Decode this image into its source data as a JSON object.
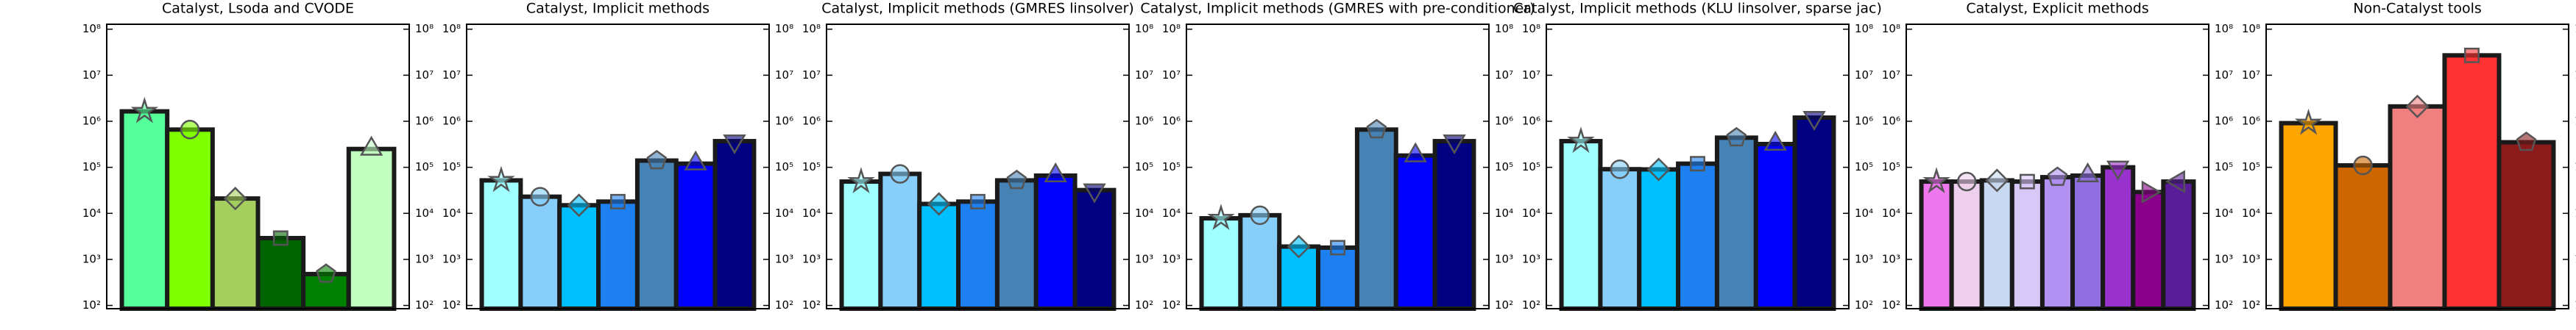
{
  "chart_data": [
    {
      "type": "bar",
      "title": "Catalyst, Lsoda and CVODE",
      "log_scale": true,
      "values": [
        1640000,
        660000,
        21000,
        2900,
        480,
        250000
      ],
      "colors": [
        "#55ff99",
        "#7fff00",
        "#a4cf5e",
        "#006400",
        "#008000",
        "#c0ffc0"
      ],
      "ylim": [
        85,
        128000000
      ],
      "yticks": [
        {
          "value": 100,
          "label": "10²"
        },
        {
          "value": 1000,
          "label": "10³"
        },
        {
          "value": 10000,
          "label": "10⁴"
        },
        {
          "value": 100000,
          "label": "10⁵"
        },
        {
          "value": 1000000,
          "label": "10⁶"
        },
        {
          "value": 10000000,
          "label": "10⁷"
        },
        {
          "value": 100000000,
          "label": "10⁸"
        }
      ]
    },
    {
      "type": "bar",
      "title": "Catalyst, Implicit methods",
      "log_scale": true,
      "values": [
        52000,
        23000,
        15000,
        18000,
        140000,
        120000,
        370000
      ],
      "colors": [
        "#a0ffff",
        "#87cefa",
        "#00bfff",
        "#1e80f0",
        "#4682b4",
        "#0000ff",
        "#000080"
      ],
      "ylim": [
        85,
        128000000
      ],
      "yticks": [
        {
          "value": 100,
          "label": "10²"
        },
        {
          "value": 1000,
          "label": "10³"
        },
        {
          "value": 10000,
          "label": "10⁴"
        },
        {
          "value": 100000,
          "label": "10⁵"
        },
        {
          "value": 1000000,
          "label": "10⁶"
        },
        {
          "value": 10000000,
          "label": "10⁷"
        },
        {
          "value": 100000000,
          "label": "10⁸"
        }
      ]
    },
    {
      "type": "bar",
      "title": "Catalyst, Implicit methods (GMRES linsolver)",
      "log_scale": true,
      "values": [
        49000,
        72000,
        16000,
        18000,
        52000,
        66000,
        32000
      ],
      "colors": [
        "#a0ffff",
        "#87cefa",
        "#00bfff",
        "#1e80f0",
        "#4682b4",
        "#0000ff",
        "#000080"
      ],
      "ylim": [
        85,
        128000000
      ],
      "yticks": [
        {
          "value": 100,
          "label": "10²"
        },
        {
          "value": 1000,
          "label": "10³"
        },
        {
          "value": 10000,
          "label": "10⁴"
        },
        {
          "value": 100000,
          "label": "10⁵"
        },
        {
          "value": 1000000,
          "label": "10⁶"
        },
        {
          "value": 10000000,
          "label": "10⁷"
        },
        {
          "value": 100000000,
          "label": "10⁸"
        }
      ]
    },
    {
      "type": "bar",
      "title": "Catalyst, Implicit methods (GMRES with pre-conditioner)",
      "log_scale": true,
      "values": [
        7800,
        9100,
        1900,
        1800,
        660000,
        180000,
        370000
      ],
      "colors": [
        "#a0ffff",
        "#87cefa",
        "#00bfff",
        "#1e80f0",
        "#4682b4",
        "#0000ff",
        "#000080"
      ],
      "ylim": [
        85,
        128000000
      ],
      "yticks": [
        {
          "value": 100,
          "label": "10²"
        },
        {
          "value": 1000,
          "label": "10³"
        },
        {
          "value": 10000,
          "label": "10⁴"
        },
        {
          "value": 100000,
          "label": "10⁵"
        },
        {
          "value": 1000000,
          "label": "10⁶"
        },
        {
          "value": 10000000,
          "label": "10⁷"
        },
        {
          "value": 100000000,
          "label": "10⁸"
        }
      ]
    },
    {
      "type": "bar",
      "title": "Catalyst, Implicit methods (KLU linsolver, sparse jac)",
      "log_scale": true,
      "values": [
        370000,
        91000,
        90000,
        120000,
        440000,
        320000,
        1200000
      ],
      "colors": [
        "#a0ffff",
        "#87cefa",
        "#00bfff",
        "#1e80f0",
        "#4682b4",
        "#0000ff",
        "#000080"
      ],
      "ylim": [
        85,
        128000000
      ],
      "yticks": [
        {
          "value": 100,
          "label": "10²"
        },
        {
          "value": 1000,
          "label": "10³"
        },
        {
          "value": 10000,
          "label": "10⁴"
        },
        {
          "value": 100000,
          "label": "10⁵"
        },
        {
          "value": 1000000,
          "label": "10⁶"
        },
        {
          "value": 10000000,
          "label": "10⁷"
        },
        {
          "value": 100000000,
          "label": "10⁸"
        }
      ]
    },
    {
      "type": "bar",
      "title": "Catalyst, Explicit methods",
      "log_scale": true,
      "values": [
        49000,
        49000,
        52000,
        49000,
        61000,
        66000,
        100000,
        29000,
        49000
      ],
      "colors": [
        "#ee77ee",
        "#eed0ee",
        "#c8d8f0",
        "#d8c8f8",
        "#b090f0",
        "#9070e0",
        "#9932cc",
        "#8b008b",
        "#5a1d99"
      ],
      "ylim": [
        85,
        128000000
      ],
      "yticks": [
        {
          "value": 100,
          "label": "10²"
        },
        {
          "value": 1000,
          "label": "10³"
        },
        {
          "value": 10000,
          "label": "10⁴"
        },
        {
          "value": 100000,
          "label": "10⁵"
        },
        {
          "value": 1000000,
          "label": "10⁶"
        },
        {
          "value": 10000000,
          "label": "10⁷"
        },
        {
          "value": 100000000,
          "label": "10⁸"
        }
      ]
    },
    {
      "type": "bar",
      "title": "Non-Catalyst tools",
      "log_scale": true,
      "values": [
        910000,
        110000,
        2100000,
        27000000,
        350000
      ],
      "colors": [
        "#ffa500",
        "#cc6600",
        "#f08080",
        "#ff3333",
        "#8b1a1a"
      ],
      "ylim": [
        85,
        128000000
      ],
      "yticks": [
        {
          "value": 100,
          "label": "10²"
        },
        {
          "value": 1000,
          "label": "10³"
        },
        {
          "value": 10000,
          "label": "10⁴"
        },
        {
          "value": 100000,
          "label": "10⁵"
        },
        {
          "value": 1000000,
          "label": "10⁶"
        },
        {
          "value": 10000000,
          "label": "10⁷"
        },
        {
          "value": 100000000,
          "label": "10⁸"
        }
      ]
    }
  ]
}
